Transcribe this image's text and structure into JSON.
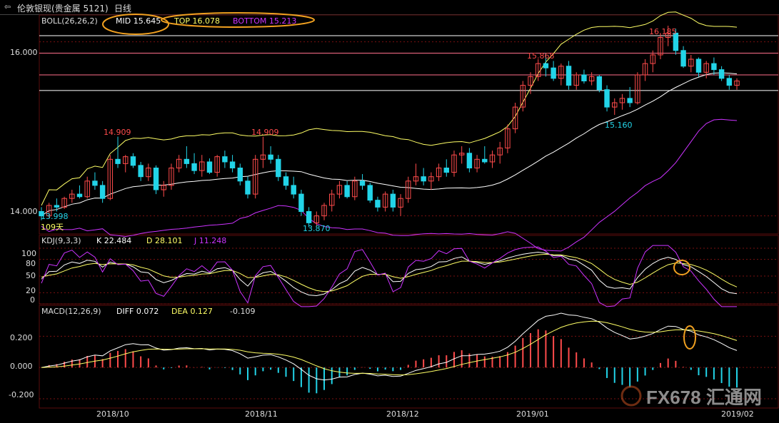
{
  "header": {
    "back_icon": "arrow-back-icon",
    "symbol": "伦敦银现(贵金属 5121)",
    "period": "日线"
  },
  "colors": {
    "up": "#ff4b4b",
    "down": "#22d4e8",
    "mid": "#ffffff",
    "top": "#ffff66",
    "bottom": "#cc33ff",
    "hline_white": "#ffffff",
    "hline_pink": "#ff6e8a",
    "grid": "#7a1010",
    "ellipse": "#f0a020"
  },
  "boll": {
    "label": "BOLL(26,26,2)",
    "mid_label": "MID 15.645",
    "top_label": "TOP 16.078",
    "bottom_label": "BOTTOM 15.213"
  },
  "kdj": {
    "label": "KDJ(9,3,3)",
    "k_label": "K 22.484",
    "d_label": "D 28.101",
    "j_label": "J 11.248",
    "ticks": [
      "100",
      "80",
      "50",
      "20",
      "0"
    ]
  },
  "macd": {
    "label": "MACD(12,26,9)",
    "diff_label": "DIFF 0.072",
    "dea_label": "DEA 0.127",
    "hist_label": "-0.109",
    "ticks": [
      "0.200",
      "0.000",
      "-0.200"
    ]
  },
  "price_axis": {
    "ticks": [
      "16.000",
      "14.000"
    ]
  },
  "annotations": {
    "low_left": "13.998",
    "days": "109天",
    "high1": "14.909",
    "high2": "14.909",
    "low1": "13.870",
    "high3": "15.868",
    "high4": "16.185",
    "low2": "15.160"
  },
  "dates": [
    "2018/10",
    "2018/11",
    "2018/12",
    "2019/01",
    "2019/02"
  ],
  "watermark": {
    "text": "FX678 汇通网"
  },
  "chart_data": {
    "type": "candlestick",
    "ohlc": [
      [
        14.05,
        14.1,
        13.95,
        14.0
      ],
      [
        14.0,
        14.15,
        13.98,
        14.12
      ],
      [
        14.12,
        14.2,
        14.05,
        14.1
      ],
      [
        14.1,
        14.22,
        14.08,
        14.2
      ],
      [
        14.2,
        14.3,
        14.15,
        14.25
      ],
      [
        14.25,
        14.35,
        14.2,
        14.22
      ],
      [
        14.22,
        14.45,
        14.2,
        14.4
      ],
      [
        14.4,
        14.5,
        14.3,
        14.35
      ],
      [
        14.35,
        14.4,
        14.15,
        14.2
      ],
      [
        14.2,
        14.7,
        14.18,
        14.65
      ],
      [
        14.65,
        14.91,
        14.55,
        14.6
      ],
      [
        14.6,
        14.7,
        14.5,
        14.68
      ],
      [
        14.68,
        14.72,
        14.55,
        14.58
      ],
      [
        14.58,
        14.62,
        14.4,
        14.45
      ],
      [
        14.45,
        14.6,
        14.4,
        14.55
      ],
      [
        14.55,
        14.58,
        14.25,
        14.3
      ],
      [
        14.3,
        14.4,
        14.22,
        14.35
      ],
      [
        14.35,
        14.6,
        14.3,
        14.55
      ],
      [
        14.55,
        14.7,
        14.5,
        14.65
      ],
      [
        14.65,
        14.8,
        14.55,
        14.6
      ],
      [
        14.6,
        14.72,
        14.48,
        14.52
      ],
      [
        14.52,
        14.7,
        14.45,
        14.62
      ],
      [
        14.62,
        14.66,
        14.48,
        14.5
      ],
      [
        14.5,
        14.7,
        14.45,
        14.68
      ],
      [
        14.68,
        14.75,
        14.55,
        14.62
      ],
      [
        14.62,
        14.7,
        14.5,
        14.55
      ],
      [
        14.55,
        14.6,
        14.35,
        14.4
      ],
      [
        14.4,
        14.45,
        14.2,
        14.25
      ],
      [
        14.25,
        14.7,
        14.2,
        14.65
      ],
      [
        14.65,
        14.91,
        14.55,
        14.7
      ],
      [
        14.7,
        14.8,
        14.6,
        14.65
      ],
      [
        14.65,
        14.7,
        14.4,
        14.45
      ],
      [
        14.45,
        14.5,
        14.3,
        14.35
      ],
      [
        14.35,
        14.45,
        14.2,
        14.25
      ],
      [
        14.25,
        14.3,
        14.0,
        14.05
      ],
      [
        14.05,
        14.1,
        13.87,
        13.92
      ],
      [
        13.92,
        14.05,
        13.88,
        14.0
      ],
      [
        14.0,
        14.15,
        13.95,
        14.12
      ],
      [
        14.12,
        14.3,
        14.05,
        14.25
      ],
      [
        14.25,
        14.4,
        14.2,
        14.35
      ],
      [
        14.35,
        14.4,
        14.2,
        14.22
      ],
      [
        14.22,
        14.45,
        14.18,
        14.4
      ],
      [
        14.4,
        14.48,
        14.3,
        14.35
      ],
      [
        14.35,
        14.38,
        14.15,
        14.18
      ],
      [
        14.18,
        14.22,
        14.05,
        14.1
      ],
      [
        14.1,
        14.28,
        14.05,
        14.25
      ],
      [
        14.25,
        14.3,
        14.05,
        14.1
      ],
      [
        14.1,
        14.25,
        14.0,
        14.2
      ],
      [
        14.2,
        14.45,
        14.15,
        14.4
      ],
      [
        14.4,
        14.6,
        14.35,
        14.45
      ],
      [
        14.45,
        14.55,
        14.35,
        14.4
      ],
      [
        14.4,
        14.5,
        14.3,
        14.45
      ],
      [
        14.45,
        14.6,
        14.4,
        14.55
      ],
      [
        14.55,
        14.65,
        14.45,
        14.5
      ],
      [
        14.5,
        14.75,
        14.45,
        14.7
      ],
      [
        14.7,
        14.8,
        14.6,
        14.72
      ],
      [
        14.72,
        14.78,
        14.5,
        14.55
      ],
      [
        14.55,
        14.7,
        14.5,
        14.65
      ],
      [
        14.65,
        14.8,
        14.6,
        14.62
      ],
      [
        14.62,
        14.75,
        14.55,
        14.7
      ],
      [
        14.7,
        14.85,
        14.6,
        14.78
      ],
      [
        14.78,
        15.05,
        14.72,
        15.0
      ],
      [
        15.0,
        15.3,
        14.95,
        15.25
      ],
      [
        15.25,
        15.55,
        15.2,
        15.5
      ],
      [
        15.5,
        15.65,
        15.4,
        15.6
      ],
      [
        15.6,
        15.8,
        15.55,
        15.75
      ],
      [
        15.75,
        15.87,
        15.6,
        15.7
      ],
      [
        15.7,
        15.78,
        15.55,
        15.58
      ],
      [
        15.58,
        15.75,
        15.5,
        15.72
      ],
      [
        15.72,
        15.78,
        15.45,
        15.5
      ],
      [
        15.5,
        15.65,
        15.45,
        15.62
      ],
      [
        15.62,
        15.68,
        15.52,
        15.55
      ],
      [
        15.55,
        15.65,
        15.5,
        15.6
      ],
      [
        15.6,
        15.62,
        15.42,
        15.45
      ],
      [
        15.45,
        15.5,
        15.2,
        15.25
      ],
      [
        15.25,
        15.35,
        15.16,
        15.3
      ],
      [
        15.3,
        15.4,
        15.22,
        15.35
      ],
      [
        15.35,
        15.48,
        15.25,
        15.3
      ],
      [
        15.3,
        15.65,
        15.28,
        15.62
      ],
      [
        15.62,
        15.8,
        15.55,
        15.75
      ],
      [
        15.75,
        15.9,
        15.65,
        15.85
      ],
      [
        15.85,
        16.1,
        15.8,
        16.05
      ],
      [
        16.05,
        16.185,
        15.95,
        16.1
      ],
      [
        16.1,
        16.15,
        15.85,
        15.9
      ],
      [
        15.9,
        15.95,
        15.7,
        15.72
      ],
      [
        15.72,
        15.85,
        15.65,
        15.8
      ],
      [
        15.8,
        15.82,
        15.6,
        15.65
      ],
      [
        15.65,
        15.78,
        15.58,
        15.75
      ],
      [
        15.75,
        15.82,
        15.62,
        15.68
      ],
      [
        15.68,
        15.72,
        15.55,
        15.58
      ],
      [
        15.58,
        15.62,
        15.45,
        15.5
      ],
      [
        15.5,
        15.58,
        15.45,
        15.55
      ]
    ],
    "ylim": [
      13.8,
      16.3
    ],
    "kdj_range": [
      0,
      100
    ],
    "macd_range": [
      -0.25,
      0.32
    ]
  }
}
